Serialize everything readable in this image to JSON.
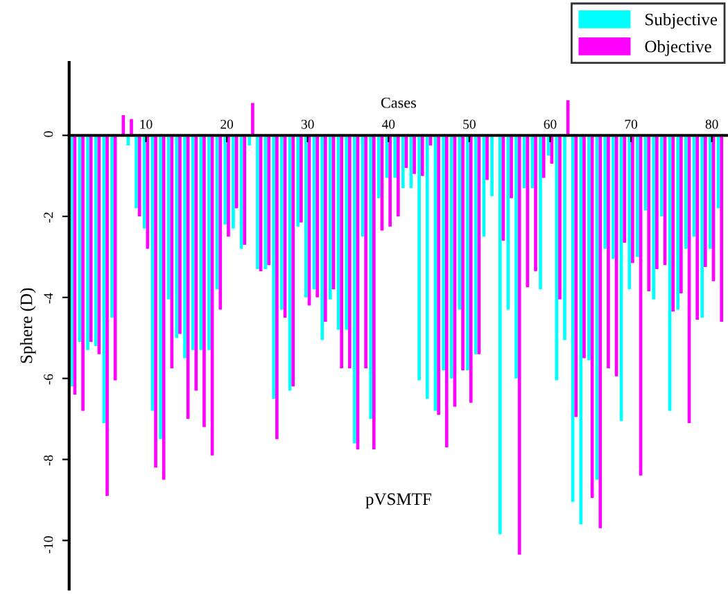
{
  "chart_data": {
    "type": "bar",
    "xlabel": "Cases",
    "ylabel": "Sphere (D)",
    "x": [
      1,
      2,
      3,
      4,
      5,
      6,
      7,
      8,
      9,
      10,
      11,
      12,
      13,
      14,
      15,
      16,
      17,
      18,
      19,
      20,
      21,
      22,
      23,
      24,
      25,
      26,
      27,
      28,
      29,
      30,
      31,
      32,
      33,
      34,
      35,
      36,
      37,
      38,
      39,
      40,
      41,
      42,
      43,
      44,
      45,
      46,
      47,
      48,
      49,
      50,
      51,
      52,
      53,
      54,
      55,
      56,
      57,
      58,
      59,
      60,
      61,
      62,
      63,
      64,
      65,
      66,
      67,
      68,
      69,
      70,
      71,
      72,
      73,
      74,
      75,
      76,
      77,
      78,
      79,
      80,
      81
    ],
    "series": [
      {
        "name": "Subjective",
        "color": "#00ffff",
        "values": [
          -6.2,
          -5.1,
          -5.3,
          -5.2,
          -7.1,
          -4.5,
          0,
          -0.25,
          -1.8,
          -2.3,
          -6.8,
          -7.5,
          -4.05,
          -5.0,
          -5.5,
          -5.3,
          -5.3,
          -5.3,
          -3.8,
          -2.2,
          -2.3,
          -2.8,
          -0.25,
          -3.3,
          -3.3,
          -6.5,
          -4.3,
          -6.3,
          -2.25,
          -4.0,
          -3.8,
          -5.05,
          -4.05,
          -4.8,
          -4.8,
          -7.6,
          -2.5,
          -7.0,
          -1.55,
          -1.05,
          -1.05,
          -1.3,
          -1.3,
          -6.05,
          -6.5,
          -6.8,
          -5.8,
          -6.0,
          -4.3,
          -5.8,
          -5.4,
          -2.5,
          -1.5,
          -9.85,
          -4.3,
          -6.0,
          -1.3,
          -1.3,
          -3.8,
          -0.5,
          -6.05,
          -5.05,
          -9.05,
          -9.6,
          -5.55,
          -8.5,
          -2.8,
          -3.05,
          -7.05,
          -3.8,
          -3.0,
          -1.85,
          -4.05,
          -2.0,
          -6.8,
          -4.3,
          -2.8,
          -2.5,
          -4.5,
          -2.8,
          -1.8
        ]
      },
      {
        "name": "Objective",
        "color": "#ff00ff",
        "values": [
          -6.4,
          -6.8,
          -5.1,
          -5.4,
          -8.9,
          -6.05,
          0.5,
          0.4,
          -2.0,
          -2.8,
          -8.2,
          -8.5,
          -5.75,
          -4.9,
          -7.0,
          -6.3,
          -7.2,
          -7.9,
          -4.3,
          -2.5,
          -1.8,
          -2.7,
          0.8,
          -3.35,
          -3.2,
          -7.5,
          -4.5,
          -6.2,
          -2.15,
          -4.2,
          -4.0,
          -4.6,
          -3.8,
          -5.75,
          -5.75,
          -7.75,
          -5.75,
          -7.75,
          -2.35,
          -2.25,
          -2.0,
          -0.8,
          -0.95,
          -1.0,
          -0.25,
          -6.9,
          -7.7,
          -6.7,
          -5.8,
          -6.6,
          -5.4,
          -1.1,
          null,
          -2.6,
          -1.55,
          -10.35,
          -3.75,
          -3.35,
          -1.05,
          -0.7,
          -4.05,
          0.87,
          -6.95,
          -5.5,
          -8.95,
          -9.7,
          -5.75,
          -5.95,
          -2.65,
          -3.15,
          -8.4,
          -3.85,
          -3.3,
          -3.2,
          -4.35,
          -3.9,
          -7.1,
          -4.55,
          -3.25,
          -3.6,
          -4.6
        ]
      }
    ],
    "xlim": [
      0.5,
      82
    ],
    "xticks": [
      10,
      20,
      30,
      40,
      50,
      60,
      70,
      80
    ],
    "ylim": [
      -11.2,
      1.8
    ],
    "yticks": [
      {
        "value": 0,
        "label": "0"
      },
      {
        "value": -2,
        "label": "-2"
      },
      {
        "value": -4,
        "label": "-4"
      },
      {
        "value": -6,
        "label": "-6"
      },
      {
        "value": -8,
        "label": "-8"
      },
      {
        "value": -10,
        "label": "-10"
      }
    ],
    "annotations": [
      "pVSMTF"
    ],
    "grid": false,
    "legend": "top right"
  }
}
